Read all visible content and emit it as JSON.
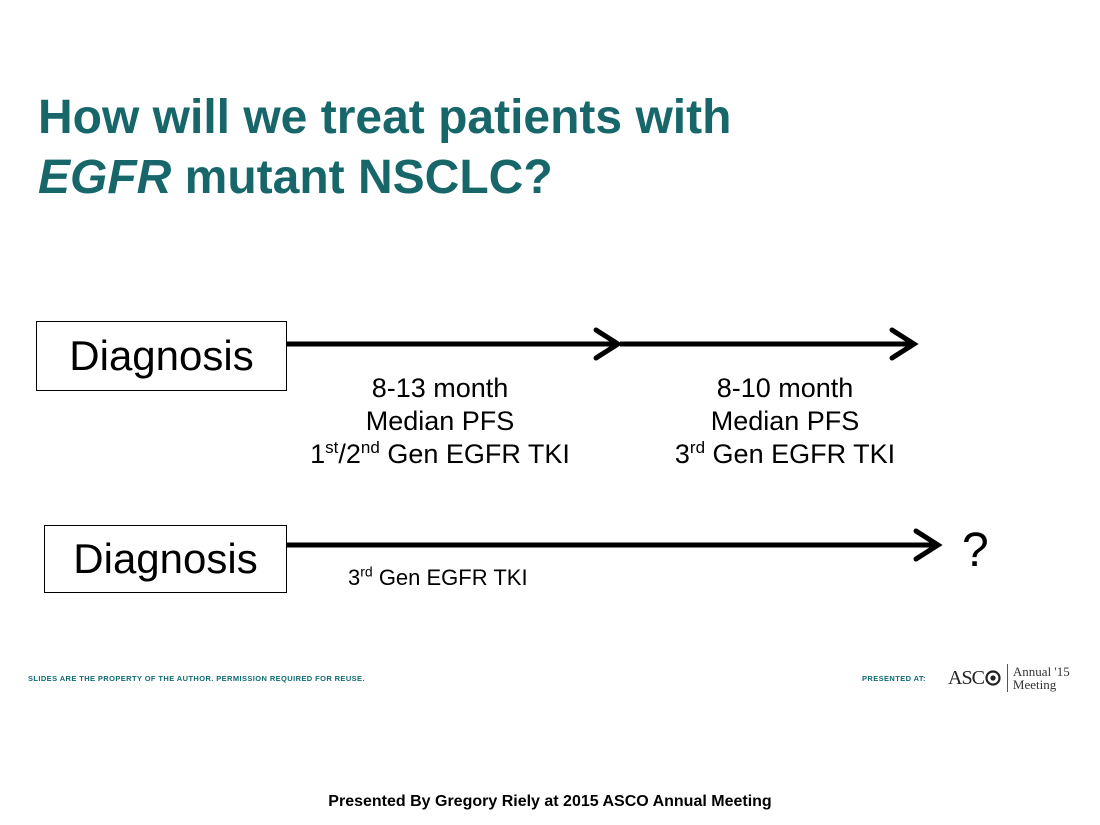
{
  "title": {
    "line1": "How will we treat patients with",
    "line2_italic": "EGFR",
    "line2_rest": " mutant NSCLC?"
  },
  "row1": {
    "box_label": "Diagnosis",
    "segment1": {
      "line1": "8-13 month",
      "line2": "Median PFS",
      "line3_a": "1",
      "line3_a_sup": "st",
      "line3_b": "/2",
      "line3_b_sup": "nd",
      "line3_rest": " Gen EGFR TKI"
    },
    "segment2": {
      "line1": "8-10 month",
      "line2": "Median PFS",
      "line3_a": "3",
      "line3_a_sup": "rd",
      "line3_rest": " Gen EGFR TKI"
    }
  },
  "row2": {
    "box_label": "Diagnosis",
    "caption_a": "3",
    "caption_a_sup": "rd",
    "caption_rest": " Gen EGFR TKI",
    "end_mark": "?"
  },
  "footer": {
    "disclaimer": "SLIDES ARE THE PROPERTY OF THE AUTHOR. PERMISSION REQUIRED FOR REUSE.",
    "presented_at": "PRESENTED AT:",
    "logo_word": "ASC",
    "meeting_line1": "Annual '15",
    "meeting_line2": "Meeting"
  },
  "credit": "Presented By Gregory Riely at 2015 ASCO Annual Meeting",
  "colors": {
    "title": "#17676a",
    "footer": "#0f6b72"
  }
}
